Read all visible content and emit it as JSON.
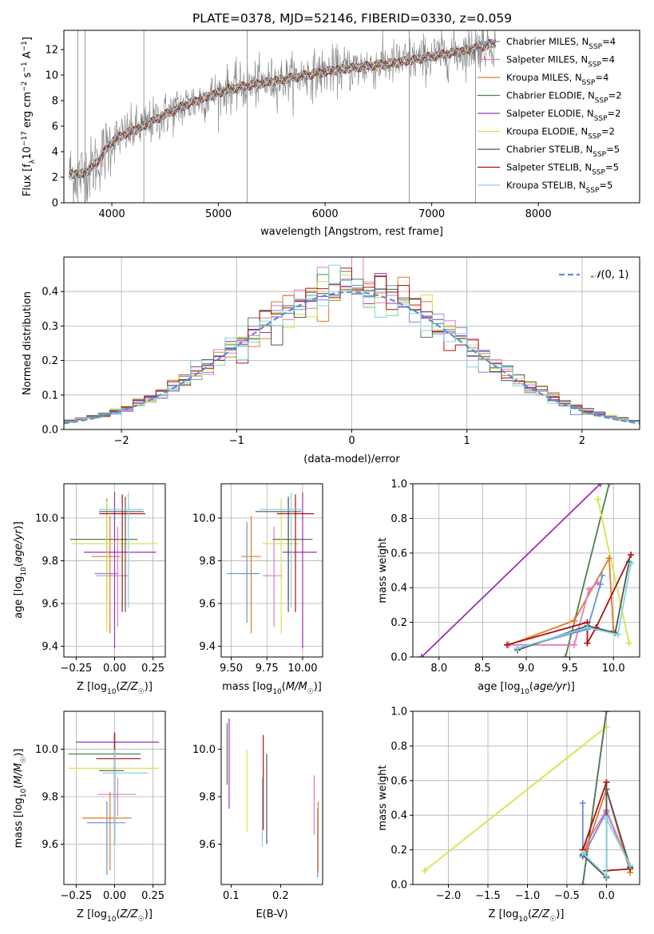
{
  "figure_title": "PLATE=0378, MJD=52146, FIBERID=0330, z=0.059",
  "colors": {
    "Chabrier MILES": "#6a8fd8",
    "Salpeter MILES": "#e07dc4",
    "Kroupa MILES": "#e07b28",
    "Chabrier ELODIE": "#4f7f4f",
    "Salpeter ELODIE": "#9b30b8",
    "Kroupa ELODIE": "#d6e44a",
    "Chabrier STELIB": "#555555",
    "Salpeter STELIB": "#b01010",
    "Kroupa STELIB": "#7fd6e0",
    "data": "#808080"
  },
  "chart_data": [
    {
      "id": "spectrum",
      "type": "line",
      "xlabel": "wavelength [Angstrom, rest frame]",
      "ylabel": "Flux [f_λ 10^-17 erg cm^-2 s^-1 A^-1]",
      "xlim": [
        3550,
        8950
      ],
      "ylim": [
        0,
        13.5
      ],
      "xticks": [
        4000,
        5000,
        6000,
        7000,
        8000
      ],
      "yticks": [
        0,
        2,
        4,
        6,
        8,
        10,
        12
      ],
      "grid": false,
      "legend_position": "right",
      "legend": [
        {
          "base": "Chabrier MILES, N",
          "sub": "SSP",
          "tail": "=4",
          "model": "Chabrier MILES"
        },
        {
          "base": "Salpeter MILES, N",
          "sub": "SSP",
          "tail": "=4",
          "model": "Salpeter MILES"
        },
        {
          "base": "Kroupa MILES, N",
          "sub": "SSP",
          "tail": "=4",
          "model": "Kroupa MILES"
        },
        {
          "base": "Chabrier ELODIE, N",
          "sub": "SSP",
          "tail": "=2",
          "model": "Chabrier ELODIE"
        },
        {
          "base": "Salpeter ELODIE, N",
          "sub": "SSP",
          "tail": "=2",
          "model": "Salpeter ELODIE"
        },
        {
          "base": "Kroupa ELODIE, N",
          "sub": "SSP",
          "tail": "=2",
          "model": "Kroupa ELODIE"
        },
        {
          "base": "Chabrier STELIB, N",
          "sub": "SSP",
          "tail": "=5",
          "model": "Chabrier STELIB"
        },
        {
          "base": "Salpeter STELIB, N",
          "sub": "SSP",
          "tail": "=5",
          "model": "Salpeter STELIB"
        },
        {
          "base": "Kroupa STELIB, N",
          "sub": "SSP",
          "tail": "=5",
          "model": "Kroupa STELIB"
        }
      ],
      "continuum": {
        "x": [
          3600,
          3700,
          3800,
          3900,
          4000,
          4100,
          4300,
          4500,
          4700,
          4900,
          5100,
          5300,
          5500,
          5700,
          5900,
          6100,
          6300,
          6500,
          6700,
          6900,
          7100,
          7300,
          7400,
          7500,
          7600
        ],
        "y": [
          2.3,
          2.2,
          2.6,
          3.6,
          4.8,
          5.3,
          6.0,
          6.9,
          7.7,
          8.3,
          8.9,
          9.2,
          9.5,
          9.8,
          10.1,
          10.4,
          10.6,
          10.8,
          11.0,
          11.3,
          11.6,
          11.9,
          12.1,
          12.3,
          12.5
        ]
      }
    },
    {
      "id": "residuals",
      "type": "histogram",
      "xlabel": "(data-model)/error",
      "ylabel": "Normed distribution",
      "xlim": [
        -2.5,
        2.5
      ],
      "ylim": [
        0,
        0.5
      ],
      "xticks": [
        -2,
        -1,
        0,
        1,
        2
      ],
      "yticks": [
        0.0,
        0.1,
        0.2,
        0.3,
        0.4
      ],
      "grid": true,
      "reference_curve": {
        "label": "N(0,1)",
        "legend_position": "top-right",
        "color": "#5b8fd6"
      },
      "bin_width": 0.1
    },
    {
      "id": "age-vs-Z",
      "type": "errorbar",
      "xlabel": "Z [log10(Z/Z☉)]",
      "ylabel": "age [log10(age/yr)]",
      "xlim": [
        -0.33,
        0.33
      ],
      "ylim": [
        9.35,
        10.16
      ],
      "xticks": [
        -0.25,
        0.0,
        0.25
      ],
      "yticks": [
        9.4,
        9.6,
        9.8,
        10.0
      ],
      "grid": true,
      "points": [
        {
          "model": "Chabrier MILES",
          "x": -0.05,
          "y": 9.74,
          "xlo": -0.13,
          "xhi": 0.02,
          "ylo": 9.51,
          "yhi": 9.98
        },
        {
          "model": "Salpeter MILES",
          "x": 0.02,
          "y": 9.73,
          "xlo": -0.12,
          "xhi": 0.09,
          "ylo": 9.49,
          "yhi": 9.96
        },
        {
          "model": "Kroupa MILES",
          "x": -0.03,
          "y": 9.82,
          "xlo": -0.15,
          "xhi": 0.04,
          "ylo": 9.46,
          "yhi": 10.01
        },
        {
          "model": "Chabrier ELODIE",
          "x": -0.05,
          "y": 9.9,
          "xlo": -0.29,
          "xhi": 0.15,
          "ylo": 9.62,
          "yhi": 10.09
        },
        {
          "model": "Salpeter ELODIE",
          "x": 0.0,
          "y": 9.84,
          "xlo": -0.2,
          "xhi": 0.27,
          "ylo": 9.39,
          "yhi": 10.12
        },
        {
          "model": "Kroupa ELODIE",
          "x": -0.05,
          "y": 9.88,
          "xlo": -0.28,
          "xhi": 0.28,
          "ylo": 9.47,
          "yhi": 10.08
        },
        {
          "model": "Chabrier STELIB",
          "x": 0.07,
          "y": 10.03,
          "xlo": -0.1,
          "xhi": 0.19,
          "ylo": 9.56,
          "yhi": 10.1
        },
        {
          "model": "Salpeter STELIB",
          "x": 0.05,
          "y": 10.02,
          "xlo": -0.1,
          "xhi": 0.2,
          "ylo": 9.56,
          "yhi": 10.11
        },
        {
          "model": "Kroupa STELIB",
          "x": 0.09,
          "y": 10.04,
          "xlo": -0.1,
          "xhi": 0.19,
          "ylo": 9.58,
          "yhi": 10.12
        }
      ]
    },
    {
      "id": "age-vs-mass",
      "type": "errorbar",
      "xlabel": "mass [log10(M/M☉)]",
      "ylabel": "",
      "xlim": [
        9.43,
        10.14
      ],
      "ylim": [
        9.35,
        10.16
      ],
      "xticks": [
        9.5,
        9.75,
        10.0
      ],
      "yticks": [
        9.4,
        9.6,
        9.8,
        10.0
      ],
      "grid": true,
      "points": [
        {
          "model": "Chabrier MILES",
          "x": 9.61,
          "y": 9.74,
          "xlo": 9.47,
          "xhi": 9.7,
          "ylo": 9.51,
          "yhi": 9.98
        },
        {
          "model": "Salpeter MILES",
          "x": 9.8,
          "y": 9.73,
          "xlo": 9.72,
          "xhi": 9.86,
          "ylo": 9.49,
          "yhi": 9.96
        },
        {
          "model": "Kroupa MILES",
          "x": 9.64,
          "y": 9.82,
          "xlo": 9.57,
          "xhi": 9.71,
          "ylo": 9.46,
          "yhi": 10.01
        },
        {
          "model": "Chabrier ELODIE",
          "x": 9.9,
          "y": 9.9,
          "xlo": 9.79,
          "xhi": 10.07,
          "ylo": 9.62,
          "yhi": 10.09
        },
        {
          "model": "Salpeter ELODIE",
          "x": 10.0,
          "y": 9.84,
          "xlo": 9.86,
          "xhi": 10.1,
          "ylo": 9.39,
          "yhi": 10.12
        },
        {
          "model": "Kroupa ELODIE",
          "x": 9.85,
          "y": 9.88,
          "xlo": 9.72,
          "xhi": 9.98,
          "ylo": 9.46,
          "yhi": 10.09
        },
        {
          "model": "Chabrier STELIB",
          "x": 9.9,
          "y": 10.03,
          "xlo": 9.67,
          "xhi": 9.99,
          "ylo": 9.56,
          "yhi": 10.1
        },
        {
          "model": "Salpeter STELIB",
          "x": 9.95,
          "y": 10.02,
          "xlo": 9.82,
          "xhi": 10.08,
          "ylo": 9.56,
          "yhi": 10.11
        },
        {
          "model": "Kroupa STELIB",
          "x": 9.92,
          "y": 10.04,
          "xlo": 9.7,
          "xhi": 10.0,
          "ylo": 9.58,
          "yhi": 10.12
        }
      ]
    },
    {
      "id": "weight-vs-age",
      "type": "line",
      "xlabel": "age [log10(age/yr)]",
      "ylabel": "mass weight",
      "xlim": [
        7.7,
        10.3
      ],
      "ylim": [
        0,
        1
      ],
      "xticks": [
        8.0,
        8.5,
        9.0,
        9.5,
        10.0
      ],
      "yticks": [
        0.0,
        0.2,
        0.4,
        0.6,
        0.8,
        1.0
      ],
      "grid": true,
      "series": [
        {
          "model": "Salpeter ELODIE",
          "x": [
            7.8,
            9.85
          ],
          "y": [
            0.0,
            1.0
          ]
        },
        {
          "model": "Chabrier ELODIE",
          "x": [
            9.45,
            9.95
          ],
          "y": [
            0.0,
            1.0
          ]
        },
        {
          "model": "Kroupa ELODIE",
          "x": [
            9.82,
            10.18
          ],
          "y": [
            0.91,
            0.08
          ]
        },
        {
          "model": "Kroupa MILES",
          "x": [
            8.8,
            9.55,
            9.95,
            10.0
          ],
          "y": [
            0.07,
            0.21,
            0.57,
            0.15
          ]
        },
        {
          "model": "Salpeter MILES",
          "x": [
            8.8,
            9.55,
            9.72,
            9.82
          ],
          "y": [
            0.07,
            0.07,
            0.39,
            0.43
          ]
        },
        {
          "model": "Chabrier MILES",
          "x": [
            8.9,
            9.7,
            9.85,
            9.87
          ],
          "y": [
            0.05,
            0.16,
            0.42,
            0.47
          ]
        },
        {
          "model": "Salpeter STELIB",
          "x": [
            8.78,
            9.7,
            9.7,
            9.8,
            10.2
          ],
          "y": [
            0.07,
            0.2,
            0.08,
            0.17,
            0.59
          ]
        },
        {
          "model": "Chabrier STELIB",
          "x": [
            8.9,
            9.7,
            10.02,
            10.18
          ],
          "y": [
            0.04,
            0.18,
            0.14,
            0.55
          ]
        },
        {
          "model": "Kroupa STELIB",
          "x": [
            8.9,
            9.7,
            10.05,
            10.2
          ],
          "y": [
            0.05,
            0.17,
            0.13,
            0.54
          ]
        }
      ]
    },
    {
      "id": "mass-vs-Z",
      "type": "errorbar",
      "xlabel": "Z [log10(Z/Z☉)]",
      "ylabel": "mass [log10(M/M☉)]",
      "xlim": [
        -0.33,
        0.33
      ],
      "ylim": [
        9.43,
        10.16
      ],
      "xticks": [
        -0.25,
        0.0,
        0.25
      ],
      "yticks": [
        9.6,
        9.8,
        10.0
      ],
      "grid": true,
      "points": [
        {
          "model": "Chabrier MILES",
          "x": -0.05,
          "y": 9.69,
          "xlo": -0.18,
          "xhi": 0.07,
          "ylo": 9.47,
          "yhi": 9.78
        },
        {
          "model": "Salpeter MILES",
          "x": 0.02,
          "y": 9.81,
          "xlo": -0.11,
          "xhi": 0.14,
          "ylo": 9.72,
          "yhi": 9.88
        },
        {
          "model": "Kroupa MILES",
          "x": -0.03,
          "y": 9.71,
          "xlo": -0.21,
          "xhi": 0.11,
          "ylo": 9.49,
          "yhi": 9.82
        },
        {
          "model": "Chabrier ELODIE",
          "x": 0.0,
          "y": 9.98,
          "xlo": -0.3,
          "xhi": 0.17,
          "ylo": 9.6,
          "yhi": 10.06
        },
        {
          "model": "Salpeter ELODIE",
          "x": 0.0,
          "y": 10.03,
          "xlo": -0.25,
          "xhi": 0.29,
          "ylo": 9.6,
          "yhi": 10.07
        },
        {
          "model": "Kroupa ELODIE",
          "x": 0.0,
          "y": 9.92,
          "xlo": -0.3,
          "xhi": 0.29,
          "ylo": 9.6,
          "yhi": 10.02
        },
        {
          "model": "Chabrier STELIB",
          "x": 0.0,
          "y": 9.91,
          "xlo": -0.1,
          "xhi": 0.06,
          "ylo": 9.6,
          "yhi": 10.06
        },
        {
          "model": "Salpeter STELIB",
          "x": 0.0,
          "y": 9.96,
          "xlo": -0.12,
          "xhi": 0.17,
          "ylo": 9.7,
          "yhi": 10.07
        },
        {
          "model": "Kroupa STELIB",
          "x": 0.0,
          "y": 9.9,
          "xlo": -0.08,
          "xhi": 0.22,
          "ylo": 9.59,
          "yhi": 10.0
        }
      ]
    },
    {
      "id": "mass-vs-EBV",
      "type": "errorbar",
      "xlabel": "E(B-V)",
      "ylabel": "",
      "xlim": [
        0.08,
        0.285
      ],
      "ylim": [
        9.43,
        10.16
      ],
      "xticks": [
        0.1,
        0.2
      ],
      "yticks": [
        9.6,
        9.8,
        10.0
      ],
      "grid": false,
      "points": [
        {
          "model": "Chabrier MILES",
          "x": 0.275,
          "y": 9.6,
          "ylo": 9.46,
          "yhi": 9.75
        },
        {
          "model": "Salpeter MILES",
          "x": 0.268,
          "y": 9.78,
          "ylo": 9.64,
          "yhi": 9.89
        },
        {
          "model": "Kroupa MILES",
          "x": 0.276,
          "y": 9.62,
          "ylo": 9.48,
          "yhi": 9.78
        },
        {
          "model": "Chabrier ELODIE",
          "x": 0.092,
          "y": 9.98,
          "ylo": 9.85,
          "yhi": 10.11
        },
        {
          "model": "Salpeter ELODIE",
          "x": 0.096,
          "y": 9.95,
          "ylo": 9.75,
          "yhi": 10.13
        },
        {
          "model": "Kroupa ELODIE",
          "x": 0.132,
          "y": 9.82,
          "ylo": 9.65,
          "yhi": 10.0
        },
        {
          "model": "Chabrier STELIB",
          "x": 0.172,
          "y": 9.8,
          "ylo": 9.6,
          "yhi": 9.98
        },
        {
          "model": "Salpeter STELIB",
          "x": 0.165,
          "y": 9.85,
          "ylo": 9.66,
          "yhi": 10.06
        },
        {
          "model": "Kroupa STELIB",
          "x": 0.163,
          "y": 9.74,
          "ylo": 9.59,
          "yhi": 9.88
        }
      ]
    },
    {
      "id": "weight-vs-Z",
      "type": "line",
      "xlabel": "Z [log10(Z/Z☉)]",
      "ylabel": "mass weight",
      "xlim": [
        -2.45,
        0.42
      ],
      "ylim": [
        0,
        1
      ],
      "xticks": [
        -2.0,
        -1.5,
        -1.0,
        -0.5,
        0.0
      ],
      "yticks": [
        0.0,
        0.2,
        0.4,
        0.6,
        0.8,
        1.0
      ],
      "grid": true,
      "series": [
        {
          "model": "Kroupa ELODIE",
          "x": [
            -2.3,
            0.0
          ],
          "y": [
            0.08,
            0.91
          ]
        },
        {
          "model": "Salpeter ELODIE",
          "x": [
            -0.3,
            0.0
          ],
          "y": [
            0.0,
            1.0
          ]
        },
        {
          "model": "Chabrier ELODIE",
          "x": [
            -0.3,
            0.0
          ],
          "y": [
            0.0,
            1.0
          ]
        },
        {
          "model": "Chabrier MILES",
          "x": [
            -0.3,
            -0.3,
            0.0,
            0.3
          ],
          "y": [
            0.47,
            0.16,
            0.42,
            0.1
          ]
        },
        {
          "model": "Salpeter MILES",
          "x": [
            -0.3,
            0.0,
            0.3
          ],
          "y": [
            0.2,
            0.43,
            0.1
          ]
        },
        {
          "model": "Kroupa MILES",
          "x": [
            -0.25,
            0.0,
            0.3
          ],
          "y": [
            0.21,
            0.55,
            0.07
          ]
        },
        {
          "model": "Salpeter STELIB",
          "x": [
            -0.3,
            0.0,
            0.0,
            0.3
          ],
          "y": [
            0.2,
            0.59,
            0.08,
            0.09
          ]
        },
        {
          "model": "Chabrier STELIB",
          "x": [
            -0.3,
            0.0,
            0.0,
            0.3
          ],
          "y": [
            0.17,
            0.04,
            0.55,
            0.1
          ]
        },
        {
          "model": "Kroupa STELIB",
          "x": [
            -0.3,
            0.0,
            0.0,
            0.3
          ],
          "y": [
            0.18,
            0.05,
            0.38,
            0.11
          ]
        }
      ]
    }
  ]
}
